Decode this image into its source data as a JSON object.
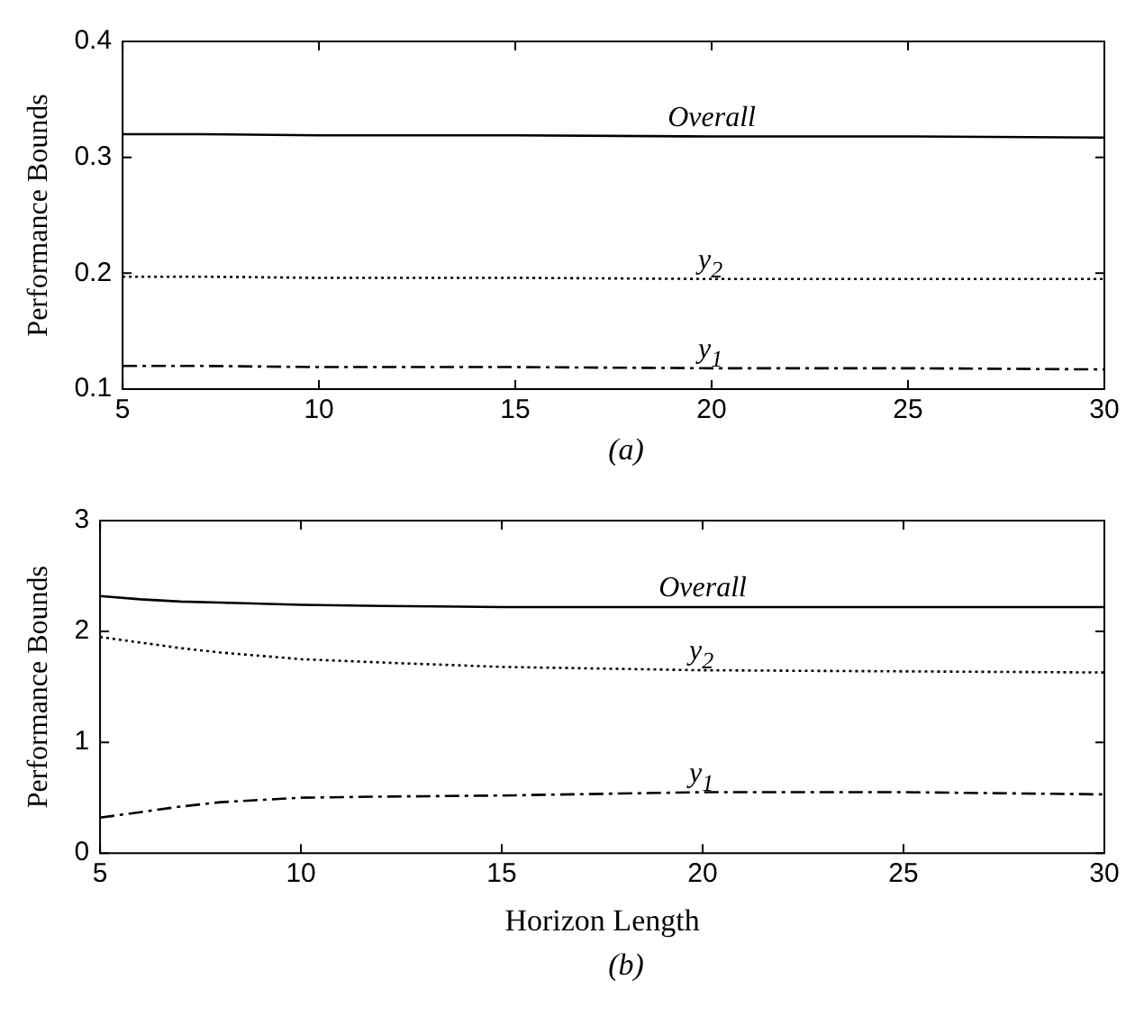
{
  "chart_data": [
    {
      "type": "line",
      "ylabel": "Performance Bounds",
      "x": [
        5,
        7,
        10,
        15,
        20,
        25,
        30
      ],
      "xlim": [
        5,
        30
      ],
      "xticks": [
        5,
        10,
        15,
        20,
        25,
        30
      ],
      "ylim": [
        0.1,
        0.4
      ],
      "yticks": [
        0.1,
        0.2,
        0.3,
        0.4
      ],
      "grid": false,
      "legend": false,
      "marker": "none",
      "annotations": [
        "(a)"
      ],
      "series": [
        {
          "name": "Overall",
          "color": "#000000",
          "line_style": "solid",
          "values": [
            0.32,
            0.32,
            0.319,
            0.319,
            0.318,
            0.318,
            0.317
          ]
        },
        {
          "name": "y$_{2}$",
          "color": "#000000",
          "line_style": "dotted",
          "values": [
            0.197,
            0.197,
            0.196,
            0.196,
            0.195,
            0.195,
            0.195
          ]
        },
        {
          "name": "y$_{1}$",
          "color": "#000000",
          "line_style": "dashed",
          "values": [
            0.12,
            0.12,
            0.119,
            0.119,
            0.118,
            0.118,
            0.117
          ]
        }
      ]
    },
    {
      "type": "line",
      "ylabel": "Performance Bounds",
      "xlabel": "Horizon Length",
      "x": [
        5,
        6,
        7,
        8,
        10,
        12,
        15,
        20,
        25,
        30
      ],
      "xlim": [
        5,
        30
      ],
      "xticks": [
        5,
        10,
        15,
        20,
        25,
        30
      ],
      "ylim": [
        0,
        3
      ],
      "yticks": [
        0,
        1,
        2,
        3
      ],
      "grid": false,
      "legend": false,
      "marker": "none",
      "annotations": [
        "(b)"
      ],
      "series": [
        {
          "name": "Overall",
          "color": "#000000",
          "line_style": "solid",
          "values": [
            2.32,
            2.29,
            2.27,
            2.26,
            2.24,
            2.23,
            2.22,
            2.22,
            2.22,
            2.22
          ]
        },
        {
          "name": "y$_{2}$",
          "color": "#000000",
          "line_style": "dotted",
          "values": [
            1.95,
            1.9,
            1.85,
            1.81,
            1.75,
            1.72,
            1.68,
            1.65,
            1.64,
            1.63
          ]
        },
        {
          "name": "y$_{1}$",
          "color": "#000000",
          "line_style": "dashed",
          "values": [
            0.32,
            0.37,
            0.42,
            0.46,
            0.5,
            0.51,
            0.52,
            0.55,
            0.55,
            0.53
          ]
        }
      ]
    }
  ]
}
